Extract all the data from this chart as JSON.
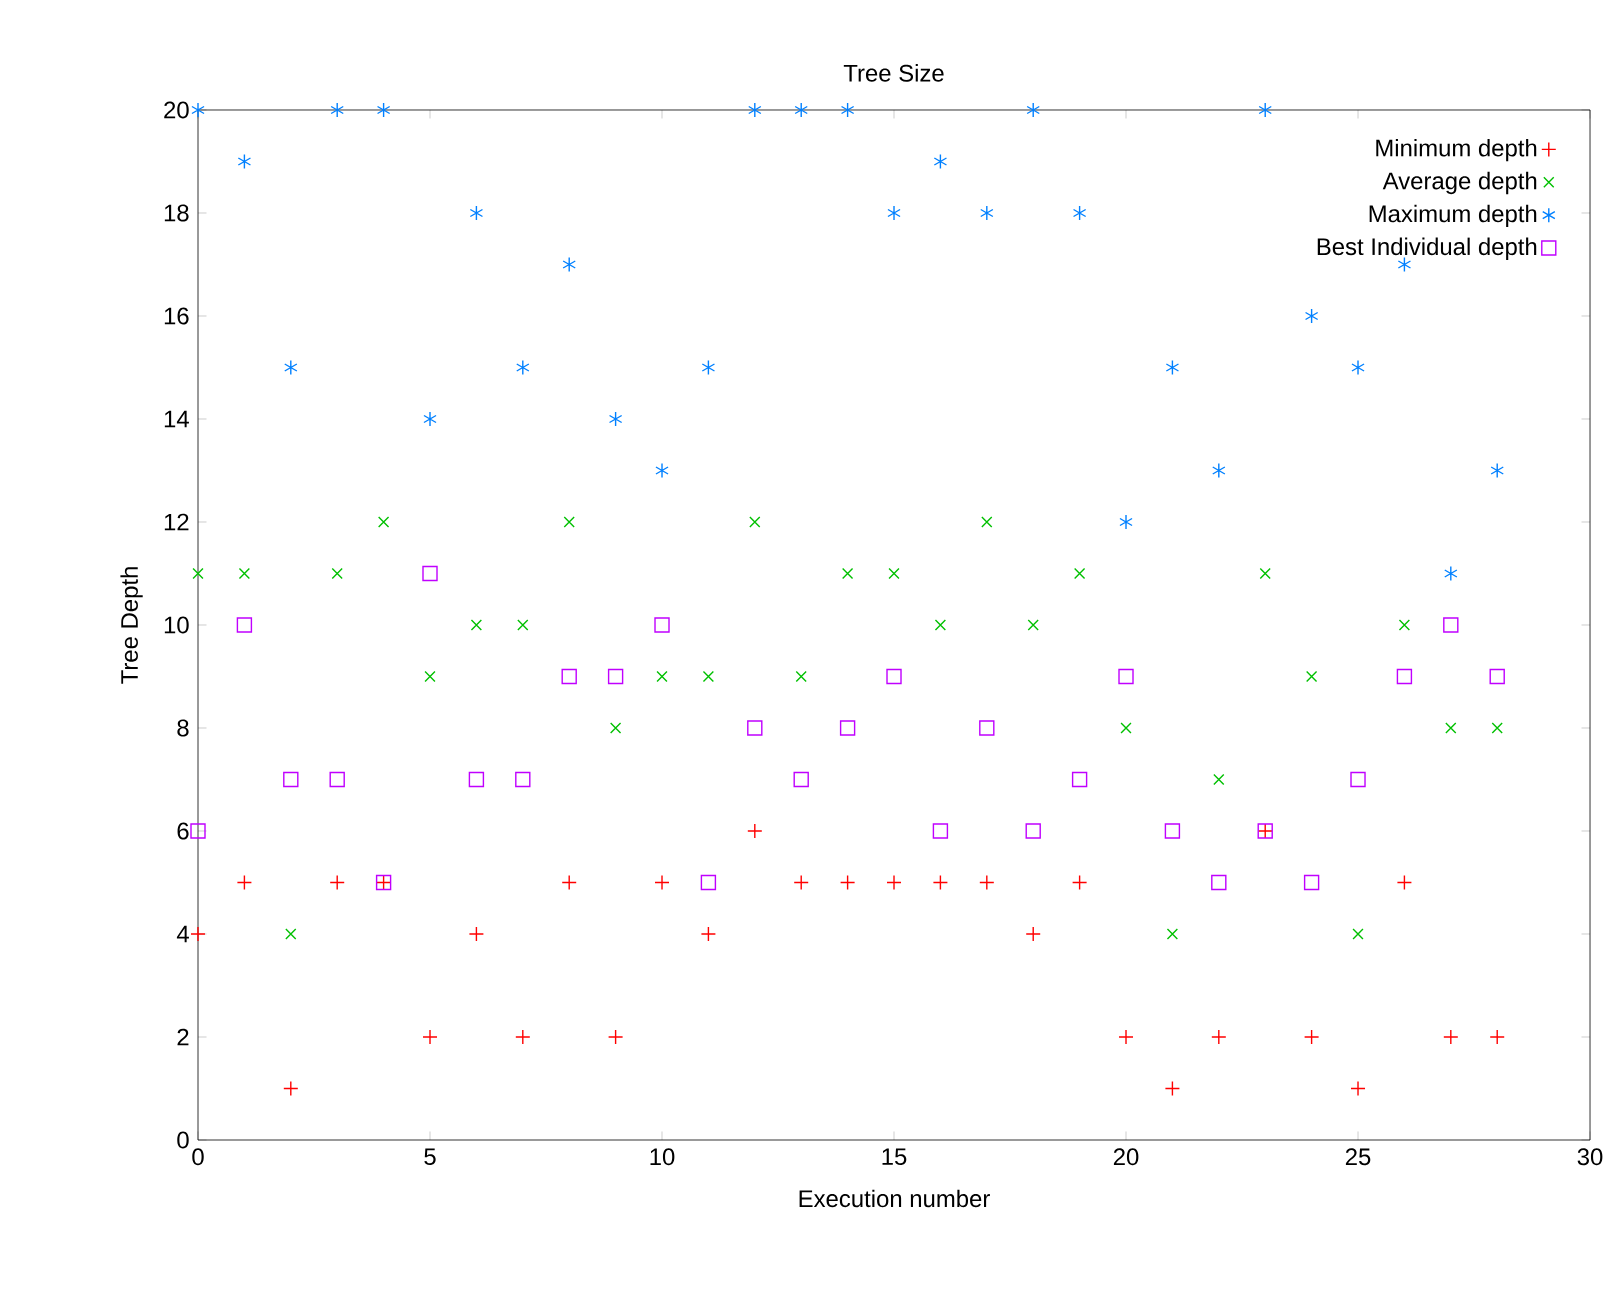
{
  "chart_data": {
    "type": "scatter",
    "title": "Tree Size",
    "xlabel": "Execution number",
    "ylabel": "Tree Depth",
    "x": [
      0,
      1,
      2,
      3,
      4,
      5,
      6,
      7,
      8,
      9,
      10,
      11,
      12,
      13,
      14,
      15,
      16,
      17,
      18,
      19,
      20,
      21,
      22,
      23,
      24,
      25,
      26,
      27,
      28
    ],
    "series": [
      {
        "name": "Minimum depth",
        "color": "#ff0000",
        "marker": "cross",
        "values": [
          4,
          5,
          1,
          5,
          5,
          2,
          4,
          2,
          5,
          2,
          5,
          4,
          6,
          5,
          5,
          5,
          5,
          5,
          4,
          5,
          2,
          1,
          2,
          6,
          2,
          1,
          5,
          2,
          2
        ]
      },
      {
        "name": "Average depth",
        "color": "#00c000",
        "marker": "x",
        "values": [
          11,
          11,
          4,
          11,
          12,
          9,
          10,
          10,
          12,
          8,
          9,
          9,
          12,
          9,
          11,
          11,
          10,
          12,
          10,
          11,
          8,
          4,
          7,
          11,
          9,
          4,
          10,
          8,
          8
        ]
      },
      {
        "name": "Maximum depth",
        "color": "#0080ff",
        "values": [
          20,
          19,
          15,
          20,
          20,
          14,
          18,
          15,
          17,
          14,
          13,
          15,
          20,
          20,
          20,
          18,
          19,
          18,
          20,
          18,
          12,
          15,
          13,
          20,
          16,
          15,
          17,
          11,
          13
        ]
      },
      {
        "name": "Best Individual depth",
        "color": "#c000ff",
        "marker": "square",
        "values": [
          6,
          10,
          7,
          7,
          5,
          11,
          7,
          7,
          9,
          9,
          10,
          5,
          8,
          7,
          8,
          9,
          6,
          8,
          6,
          7,
          9,
          6,
          5,
          6,
          5,
          7,
          9,
          10,
          9
        ]
      }
    ],
    "xlim": [
      0,
      30
    ],
    "xticks": [
      0,
      5,
      10,
      15,
      20,
      25,
      30
    ],
    "ylim": [
      0,
      20
    ],
    "yticks": [
      0,
      2,
      4,
      6,
      8,
      10,
      12,
      14,
      16,
      18,
      20
    ],
    "grid": false,
    "legend": "top right"
  }
}
